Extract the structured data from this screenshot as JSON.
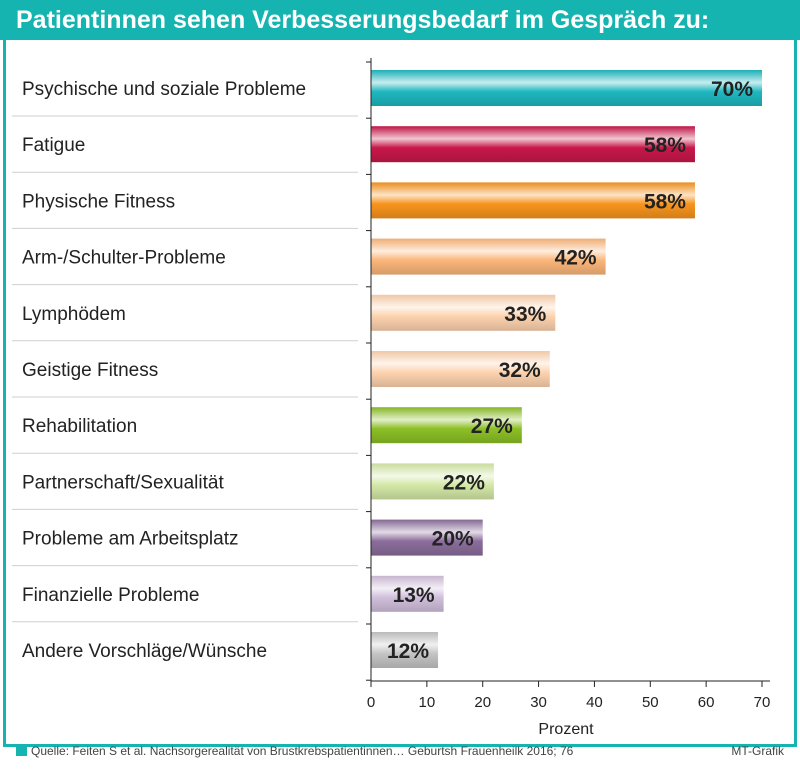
{
  "title": "Patientinnen sehen Verbesserungsbedarf im Gespräch zu:",
  "source": "Quelle: Feiten S et al. Nachsorgerealität von Brustkrebspatientinnen… Geburtsh Frauenheilk 2016; 76",
  "credit": "MT-Grafik",
  "chart_data": {
    "type": "bar",
    "orientation": "horizontal",
    "categories": [
      "Psychische und soziale Probleme",
      "Fatigue",
      "Physische Fitness",
      "Arm-/Schulter-Probleme",
      "Lymphödem",
      "Geistige Fitness",
      "Rehabilitation",
      "Partnerschaft/Sexualität",
      "Probleme am Arbeitsplatz",
      "Finanzielle Probleme",
      "Andere Vorschläge/Wünsche"
    ],
    "values": [
      70,
      58,
      58,
      42,
      33,
      32,
      27,
      22,
      20,
      13,
      12
    ],
    "value_labels": [
      "70%",
      "58%",
      "58%",
      "42%",
      "33%",
      "32%",
      "27%",
      "22%",
      "20%",
      "13%",
      "12%"
    ],
    "colors": [
      "#1fb8c0",
      "#c8174a",
      "#f7941d",
      "#fbb67a",
      "#fdd2ae",
      "#fdd2ae",
      "#8cbf26",
      "#d4e8a6",
      "#8b6d9c",
      "#d1bfdb",
      "#c4c4c4"
    ],
    "xlabel": "Prozent",
    "xlim": [
      0,
      70
    ],
    "xticks": [
      "0",
      "10",
      "20",
      "30",
      "40",
      "50",
      "60",
      "70"
    ],
    "grid": false
  }
}
